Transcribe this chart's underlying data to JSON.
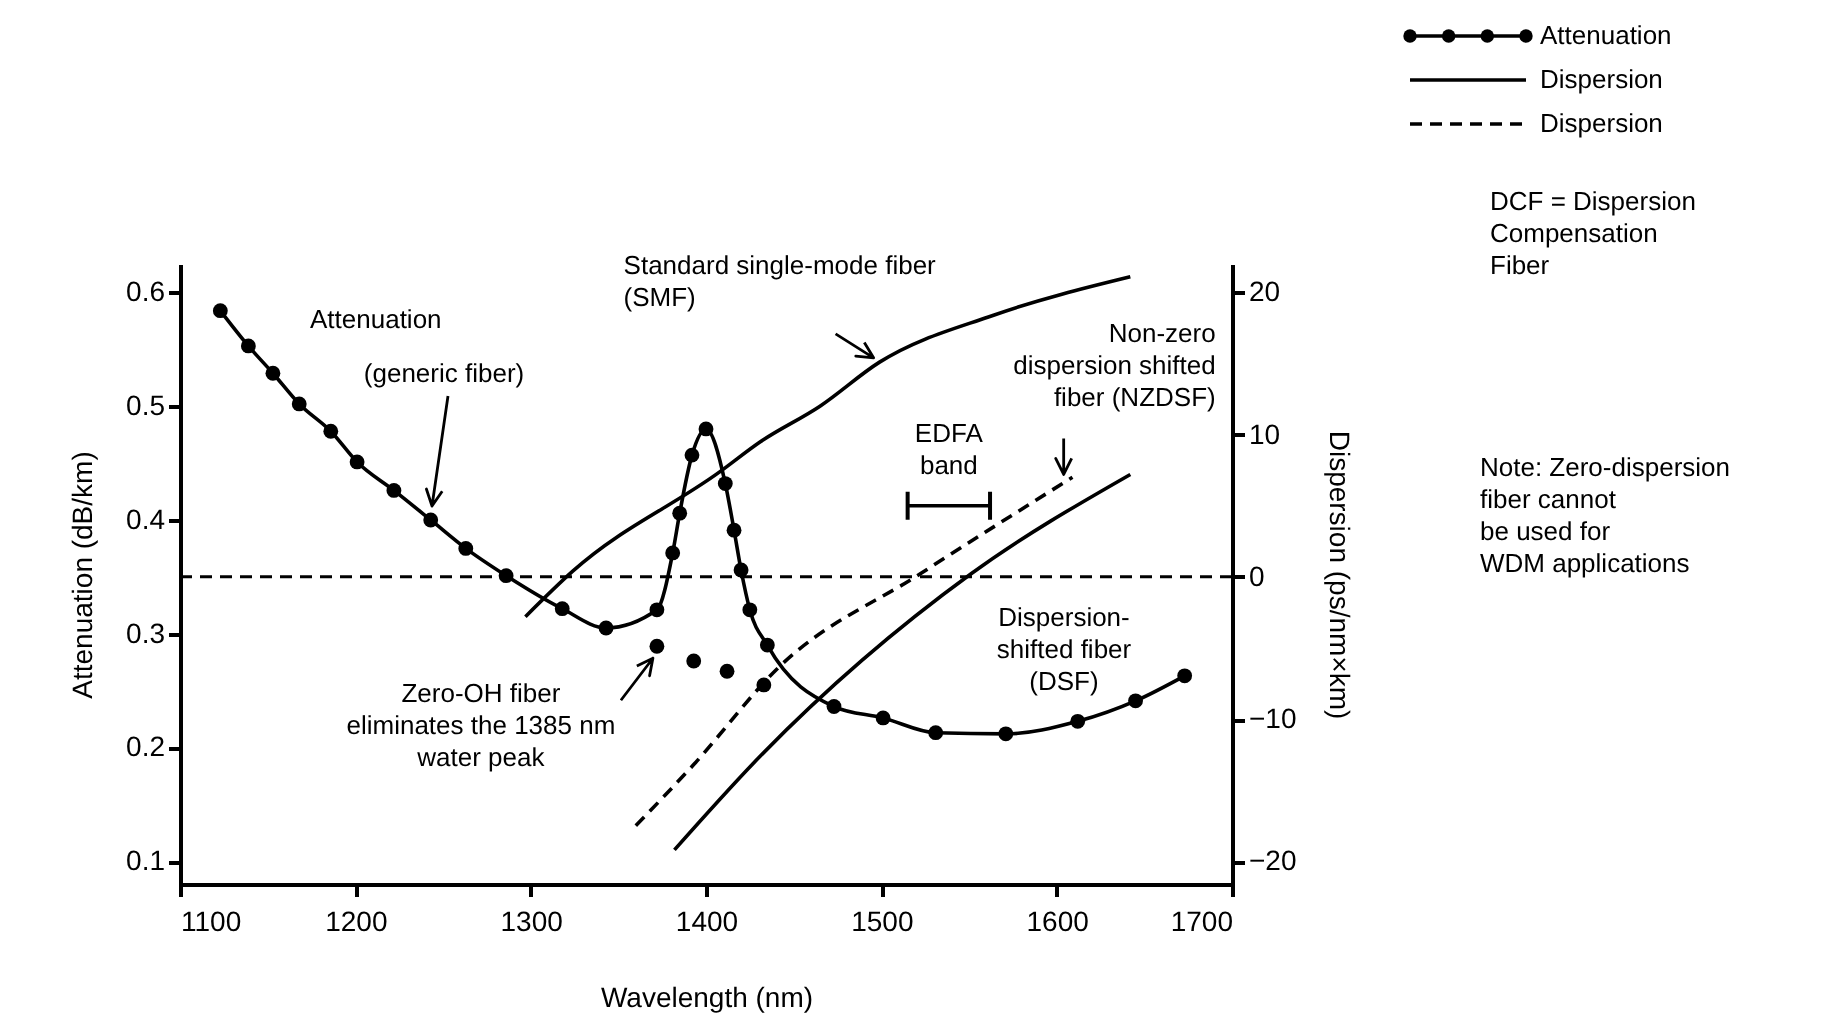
{
  "chart_data": {
    "type": "line",
    "xlabel": "Wavelength (nm)",
    "ylabel": "Attenuation (dB/km)",
    "y2label": "Dispersion (ps/nm×km)",
    "xlim": [
      1100,
      1700
    ],
    "xticks": [
      1100,
      1200,
      1300,
      1400,
      1500,
      1600,
      1700
    ],
    "ylim": [
      0.08,
      0.625
    ],
    "yticks": [
      0.1,
      0.2,
      0.3,
      0.4,
      0.5,
      0.6
    ],
    "y2lim": [
      -21.6,
      22
    ],
    "y2ticks": [
      -20,
      -10,
      0,
      10,
      20
    ],
    "grid": false,
    "legend": "top right",
    "series": [
      {
        "name": "Attenuation",
        "marker": "circle",
        "line_style": "solid",
        "color": "#000000",
        "x": [
          1123,
          1139,
          1153,
          1168,
          1186,
          1201,
          1222,
          1243,
          1263,
          1286,
          1318,
          1343,
          1372,
          1381,
          1385,
          1392,
          1400,
          1411,
          1416,
          1420,
          1425,
          1435,
          1473,
          1501,
          1531,
          1571,
          1612,
          1645,
          1673
        ],
        "values": [
          0.584,
          0.553,
          0.529,
          0.502,
          0.478,
          0.451,
          0.426,
          0.4,
          0.375,
          0.351,
          0.322,
          0.305,
          0.321,
          0.371,
          0.406,
          0.457,
          0.48,
          0.432,
          0.391,
          0.356,
          0.321,
          0.29,
          0.236,
          0.226,
          0.213,
          0.212,
          0.223,
          0.241,
          0.263
        ]
      },
      {
        "type": "scatter",
        "marker": "circle",
        "color": "#000000",
        "x": [
          1372,
          1393,
          1412,
          1433
        ],
        "values": [
          0.289,
          0.276,
          0.267,
          0.255
        ]
      },
      {
        "name": "Dispersion",
        "axis": "y2",
        "marker": "none",
        "line_style": "solid",
        "color": "#000000",
        "x": [
          1297,
          1324,
          1408,
          1431,
          1465,
          1499,
          1564,
          1642
        ],
        "values": [
          -2.8,
          0.4,
          7.4,
          9.5,
          12.0,
          15.1,
          18.4,
          21.1
        ]
      },
      {
        "name": "Dispersion",
        "axis": "y2",
        "marker": "none",
        "line_style": "dashed",
        "color": "#000000",
        "x": [
          1360,
          1393,
          1442,
          1522,
          1609
        ],
        "values": [
          -17.5,
          -13.2,
          -6.3,
          0.2,
          7.0
        ]
      },
      {
        "axis": "y2",
        "marker": "none",
        "line_style": "solid",
        "color": "#000000",
        "x": [
          1382,
          1431,
          1551,
          1642
        ],
        "values": [
          -19.2,
          -12.6,
          0.2,
          7.2
        ]
      },
      {
        "axis": "y2",
        "marker": "none",
        "line_style": "solid",
        "color": "#000000",
        "x": [
          1515,
          1562
        ],
        "values": [
          5,
          5
        ]
      }
    ],
    "ref_lines": [
      {
        "axis": "y2",
        "value": 0,
        "line_style": "dashed",
        "color": "#000000"
      }
    ],
    "annotations": [
      "Attenuation",
      "(generic fiber)",
      {
        "text": "Standard single-mode fiber\n(SMF)",
        "x": 1499,
        "y": 0.539
      },
      {
        "text": "Non-zero\ndispersion shifted\nfiber (NZDSF)",
        "x": 1604,
        "y": 0.433
      },
      "Dispersion-\nshifted fiber\n(DSF)",
      {
        "text": "Zero-OH fiber\neliminates the 1385 nm\nwater peak",
        "x": 1372,
        "y": 0.289
      },
      "DCF = Dispersion\nCompensation\nFiber",
      "Note: Zero-dispersion\nfiber cannot\nbe used for\nWDM applications",
      {
        "text": "EDFA\nband",
        "x": 1538.5,
        "y": 0.4125
      }
    ]
  }
}
